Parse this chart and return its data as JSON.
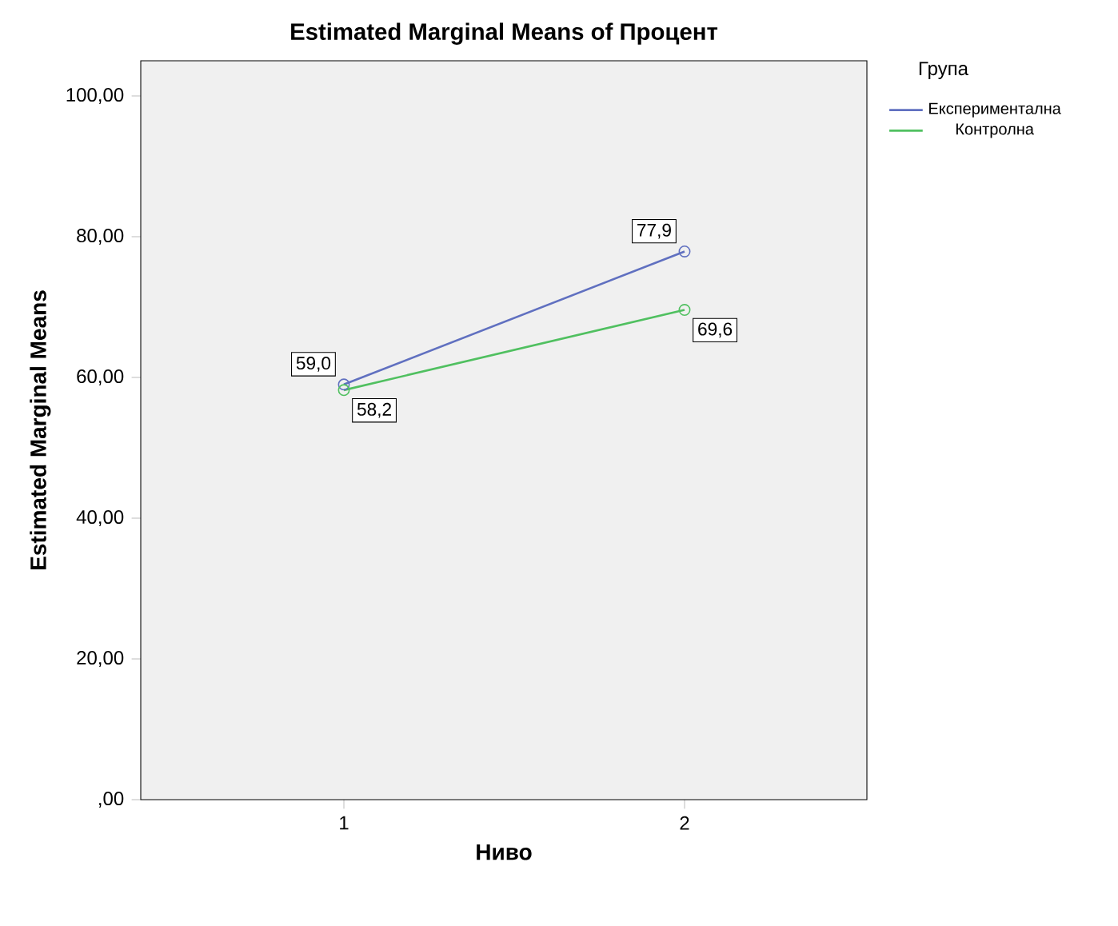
{
  "chart_data": {
    "type": "line",
    "title": "Estimated Marginal Means of Процент",
    "xlabel": "Ниво",
    "ylabel": "Estimated Marginal Means",
    "legend_title": "Група",
    "categories": [
      "1",
      "2"
    ],
    "series": [
      {
        "name": "Експериментална",
        "color": "#6070c0",
        "values": [
          59.0,
          77.9
        ],
        "value_labels": [
          "59,0",
          "77,9"
        ]
      },
      {
        "name": "Контролна",
        "color": "#50c060",
        "values": [
          58.2,
          69.6
        ],
        "value_labels": [
          "58,2",
          "69,6"
        ]
      }
    ],
    "ylim": [
      0,
      105
    ],
    "yticks": [
      {
        "value": 0,
        "label": ",00"
      },
      {
        "value": 20,
        "label": "20,00"
      },
      {
        "value": 40,
        "label": "40,00"
      },
      {
        "value": 60,
        "label": "60,00"
      },
      {
        "value": 80,
        "label": "80,00"
      },
      {
        "value": 100,
        "label": "100,00"
      }
    ],
    "marker": "circle",
    "line_style": "solid",
    "legend": "top right"
  }
}
